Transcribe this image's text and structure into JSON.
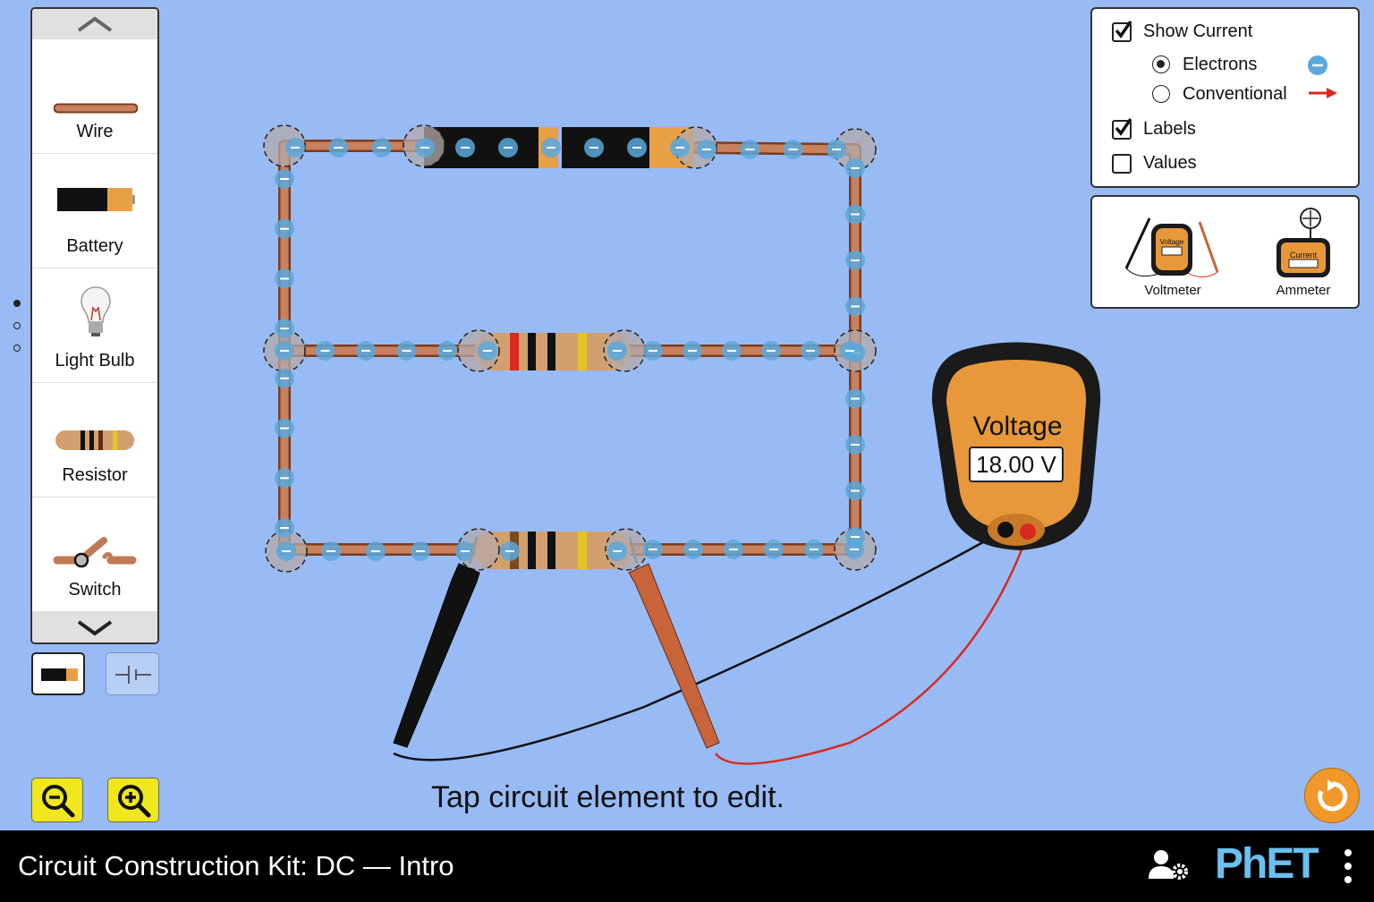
{
  "toolbox": {
    "items": [
      {
        "label": "Wire"
      },
      {
        "label": "Battery"
      },
      {
        "label": "Light Bulb"
      },
      {
        "label": "Resistor"
      },
      {
        "label": "Switch"
      }
    ]
  },
  "display_panel": {
    "show_current": {
      "label": "Show Current",
      "checked": true
    },
    "electrons": {
      "label": "Electrons",
      "selected": true
    },
    "conventional": {
      "label": "Conventional",
      "selected": false
    },
    "labels": {
      "label": "Labels",
      "checked": true
    },
    "values": {
      "label": "Values",
      "checked": false
    }
  },
  "sensor_panel": {
    "voltmeter": {
      "label": "Voltmeter",
      "screen_text": "Voltage"
    },
    "ammeter": {
      "label": "Ammeter",
      "screen_text": "Current"
    }
  },
  "voltmeter": {
    "title": "Voltage",
    "reading": "18.00 V"
  },
  "hint": "Tap circuit element to edit.",
  "nav": {
    "title": "Circuit Construction Kit: DC — Intro",
    "brand": "PhET"
  },
  "colors": {
    "background": "#99bbf5",
    "wire": "#c07a55",
    "meter_body": "#e8983a",
    "electron": "#5ba8dc",
    "probe_red": "#d83a2a"
  }
}
